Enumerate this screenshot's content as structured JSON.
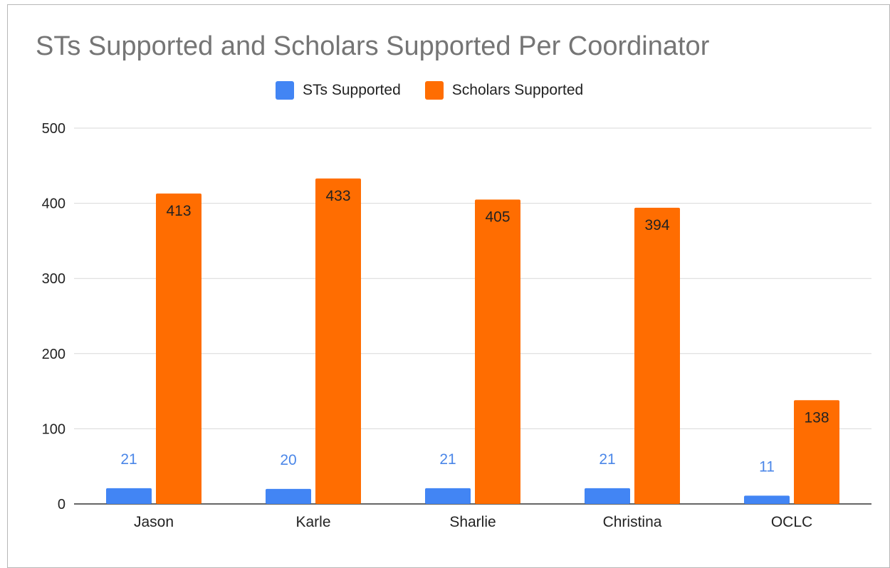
{
  "chart_data": {
    "type": "bar",
    "title": "STs Supported and Scholars Supported Per Coordinator",
    "categories": [
      "Jason",
      "Karle",
      "Sharlie",
      "Christina",
      "OCLC"
    ],
    "series": [
      {
        "name": "STs Supported",
        "values": [
          21,
          20,
          21,
          21,
          11
        ],
        "color": "#4285f4",
        "label_color": "#4a86e8"
      },
      {
        "name": "Scholars Supported",
        "values": [
          413,
          433,
          405,
          394,
          138
        ],
        "color": "#ff6d01",
        "label_color": "#222222"
      }
    ],
    "ylim": [
      0,
      500
    ],
    "yticks": [
      "0",
      "100",
      "200",
      "300",
      "400",
      "500"
    ],
    "xlabel": "",
    "ylabel": "",
    "grid": true,
    "legend_position": "top-center"
  }
}
